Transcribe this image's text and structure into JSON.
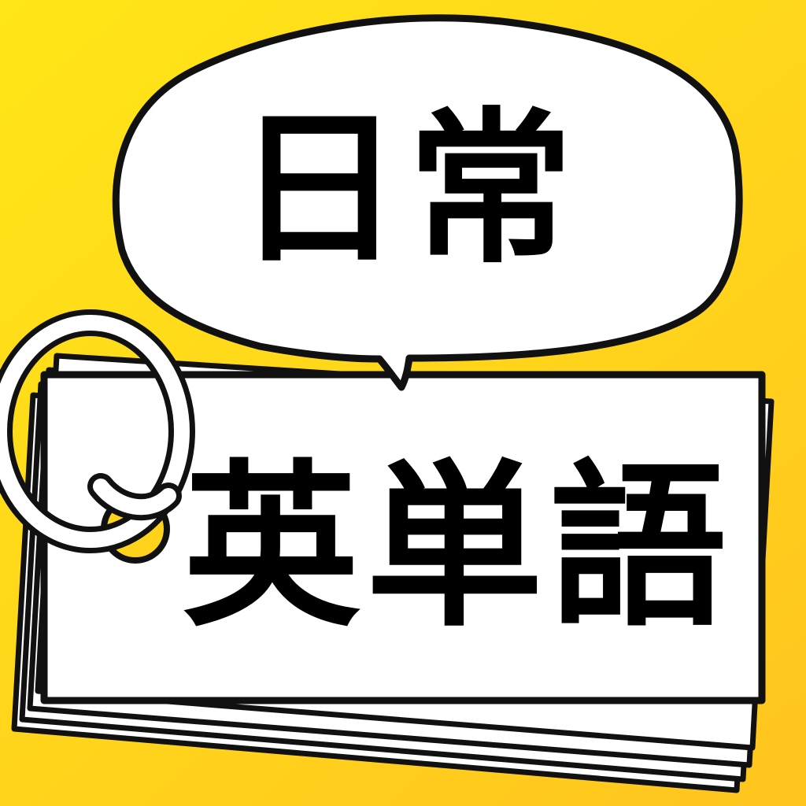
{
  "icon": {
    "speech_bubble_text": "日常",
    "card_text": "英単語",
    "colors": {
      "background_top": "#FFE617",
      "background_bottom": "#FFC71E",
      "card": "#FFFFFF",
      "outline": "#111111",
      "text": "#000000"
    },
    "elements": {
      "ring": "binder-ring-icon",
      "bubble": "speech-bubble",
      "cards": "flashcard-stack"
    }
  }
}
